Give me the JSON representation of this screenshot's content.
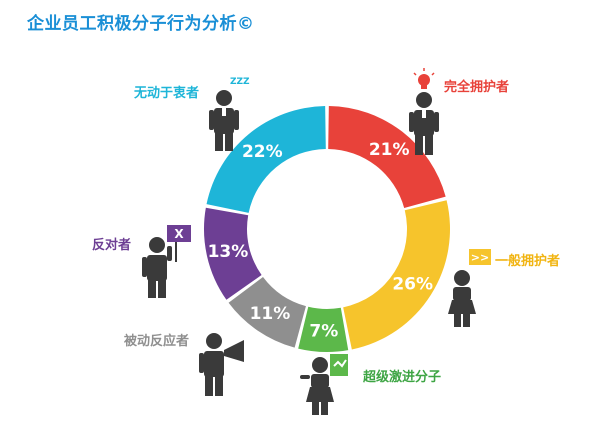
{
  "title": "企业员工积极分子行为分析©",
  "icons": {
    "sleep": "ZZZ",
    "no_sign": "X",
    "arrows": ">>"
  },
  "chart_data": {
    "type": "pie",
    "style": "donut",
    "slices": [
      {
        "label": "完全拥护者",
        "value": 21,
        "display": "21%",
        "color": "#e8423a"
      },
      {
        "label": "一般拥护者",
        "value": 26,
        "display": "26%",
        "color": "#f6c42c"
      },
      {
        "label": "超级激进分子",
        "value": 7,
        "display": "7%",
        "color": "#5cb84a"
      },
      {
        "label": "被动反应者",
        "value": 11,
        "display": "11%",
        "color": "#8f8f8f"
      },
      {
        "label": "反对者",
        "value": 13,
        "display": "13%",
        "color": "#6d3f94"
      },
      {
        "label": "无动于衷者",
        "value": 22,
        "display": "22%",
        "color": "#1eb5d8"
      }
    ]
  }
}
